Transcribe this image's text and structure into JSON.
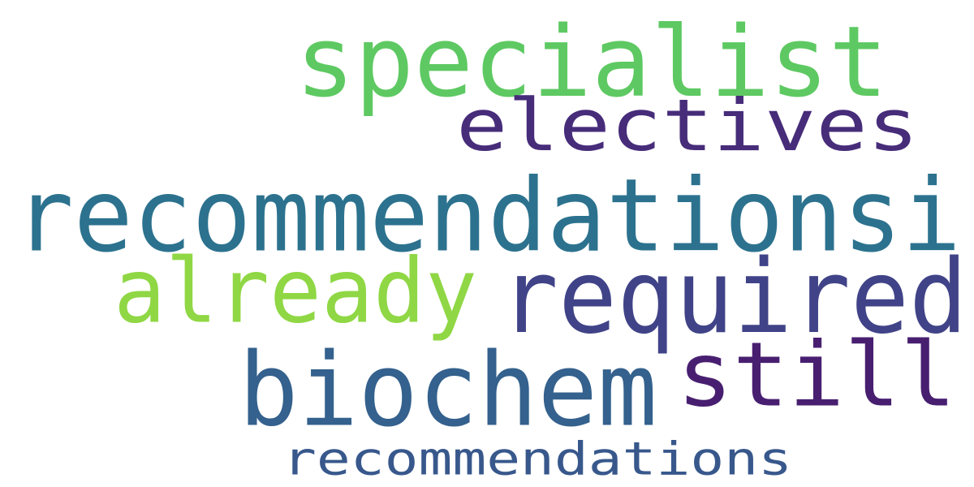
{
  "words": [
    {
      "text": "specialist",
      "color": "#5ec962"
    },
    {
      "text": "electives",
      "color": "#472c7a"
    },
    {
      "text": "recommendationsi",
      "color": "#2c728e"
    },
    {
      "text": "already",
      "color": "#8fd744"
    },
    {
      "text": "required",
      "color": "#404387"
    },
    {
      "text": "biochem",
      "color": "#34618d"
    },
    {
      "text": "still",
      "color": "#481f70"
    },
    {
      "text": "recommendations",
      "color": "#38588c"
    }
  ]
}
